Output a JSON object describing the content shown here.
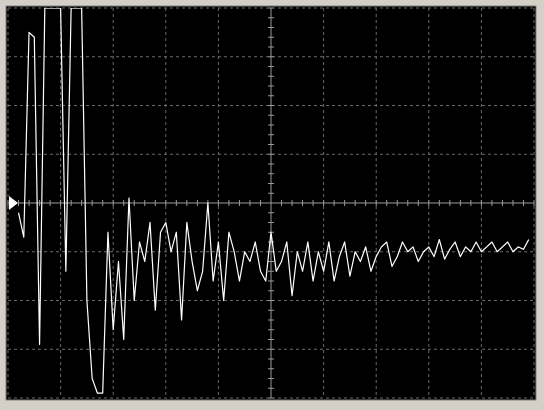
{
  "chart_data": {
    "type": "line",
    "color": "#ffffff",
    "grid": true,
    "xlim": [
      0,
      100
    ],
    "xticks": [
      0,
      10,
      20,
      30,
      40,
      50,
      60,
      70,
      80,
      90,
      100
    ],
    "ylim": [
      -4,
      4
    ],
    "yticks": [
      -4,
      -3,
      -2,
      -1,
      0,
      1,
      2,
      3,
      4
    ],
    "x": [
      2,
      3,
      4,
      5,
      6,
      7,
      8,
      9,
      10,
      11,
      12,
      13,
      14,
      15,
      16,
      17,
      18,
      19,
      20,
      21,
      22,
      23,
      24,
      25,
      26,
      27,
      28,
      29,
      30,
      31,
      32,
      33,
      34,
      35,
      36,
      37,
      38,
      39,
      40,
      41,
      42,
      43,
      44,
      45,
      46,
      47,
      48,
      49,
      50,
      51,
      52,
      53,
      54,
      55,
      56,
      57,
      58,
      59,
      60,
      61,
      62,
      63,
      64,
      65,
      66,
      67,
      68,
      69,
      70,
      71,
      72,
      73,
      74,
      75,
      76,
      77,
      78,
      79,
      80,
      81,
      82,
      83,
      84,
      85,
      86,
      87,
      88,
      89,
      90,
      91,
      92,
      93,
      94,
      95,
      96,
      97,
      98,
      99
    ],
    "values": [
      -0.2,
      -0.7,
      3.5,
      3.4,
      -2.9,
      4,
      4,
      4,
      4,
      -1.4,
      4,
      4,
      4,
      -2,
      -3.6,
      -3.9,
      -3.9,
      -0.6,
      -2.6,
      -1.2,
      -2.8,
      0.1,
      -2.0,
      -0.8,
      -1.2,
      -0.4,
      -2.2,
      -0.6,
      -0.4,
      -1.0,
      -0.6,
      -2.4,
      -0.4,
      -1.2,
      -1.8,
      -1.4,
      0.0,
      -1.6,
      -0.8,
      -2.0,
      -0.6,
      -1.0,
      -1.6,
      -1.0,
      -1.2,
      -0.8,
      -1.4,
      -1.6,
      -0.6,
      -1.4,
      -1.2,
      -0.8,
      -1.9,
      -1.0,
      -1.4,
      -0.8,
      -1.6,
      -1.0,
      -1.4,
      -0.8,
      -1.6,
      -1.1,
      -0.8,
      -1.5,
      -1.0,
      -1.2,
      -0.9,
      -1.4,
      -1.1,
      -0.9,
      -0.8,
      -1.3,
      -1.1,
      -0.8,
      -1.0,
      -0.9,
      -1.2,
      -1.0,
      -0.9,
      -1.1,
      -0.75,
      -1.15,
      -0.95,
      -0.8,
      -1.1,
      -0.9,
      -1.0,
      -0.8,
      -1.0,
      -0.9,
      -0.8,
      -1.0,
      -0.9,
      -0.8,
      -1.0,
      -0.9,
      -0.95,
      -0.75
    ]
  }
}
